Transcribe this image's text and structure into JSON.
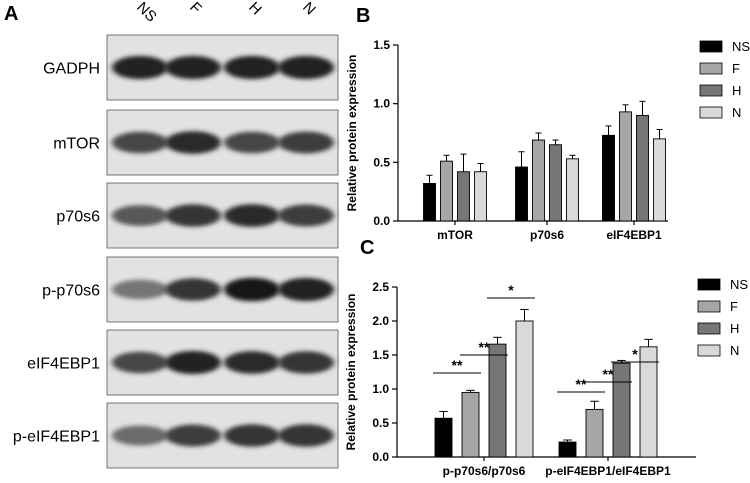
{
  "panels": {
    "a": "A",
    "b": "B",
    "c": "C"
  },
  "blot": {
    "lanes": [
      "NS",
      "F",
      "H",
      "N"
    ],
    "rows": [
      {
        "label": "GADPH",
        "intensity": [
          0.9,
          0.9,
          0.9,
          0.9
        ]
      },
      {
        "label": "mTOR",
        "intensity": [
          0.7,
          0.85,
          0.7,
          0.75
        ]
      },
      {
        "label": "p70s6",
        "intensity": [
          0.6,
          0.8,
          0.85,
          0.75
        ]
      },
      {
        "label": "p-p70s6",
        "intensity": [
          0.45,
          0.8,
          0.95,
          0.9
        ]
      },
      {
        "label": "eIF4EBP1",
        "intensity": [
          0.7,
          0.9,
          0.85,
          0.8
        ]
      },
      {
        "label": "p-eIF4EBP1",
        "intensity": [
          0.5,
          0.75,
          0.8,
          0.8
        ]
      }
    ]
  },
  "legend": [
    "NS",
    "F",
    "H",
    "N"
  ],
  "colors": {
    "NS": "#000000",
    "F": "#a6a6a6",
    "H": "#767676",
    "N": "#d9d9d9"
  },
  "chart_data": [
    {
      "type": "bar",
      "panel": "B",
      "categories": [
        "mTOR",
        "p70s6",
        "eIF4EBP1"
      ],
      "series": [
        {
          "name": "NS",
          "values": [
            0.32,
            0.46,
            0.73
          ],
          "errors": [
            0.07,
            0.13,
            0.08
          ]
        },
        {
          "name": "F",
          "values": [
            0.51,
            0.69,
            0.93
          ],
          "errors": [
            0.05,
            0.06,
            0.06
          ]
        },
        {
          "name": "H",
          "values": [
            0.42,
            0.65,
            0.9
          ],
          "errors": [
            0.15,
            0.04,
            0.12
          ]
        },
        {
          "name": "N",
          "values": [
            0.42,
            0.53,
            0.7
          ],
          "errors": [
            0.07,
            0.03,
            0.08
          ]
        }
      ],
      "ylabel": "Relative protein expression",
      "ylim": [
        0,
        1.5
      ],
      "yticks": [
        "0.0",
        "0.5",
        "1.0",
        "1.5"
      ],
      "grid": false,
      "legend_position": "right"
    },
    {
      "type": "bar",
      "panel": "C",
      "categories": [
        "p-p70s6/p70s6",
        "p-eIF4EBP1/eIF4EBP1"
      ],
      "series": [
        {
          "name": "NS",
          "values": [
            0.57,
            0.22
          ],
          "errors": [
            0.1,
            0.03
          ]
        },
        {
          "name": "F",
          "values": [
            0.95,
            0.7
          ],
          "errors": [
            0.03,
            0.12
          ]
        },
        {
          "name": "H",
          "values": [
            1.66,
            1.38
          ],
          "errors": [
            0.1,
            0.04
          ]
        },
        {
          "name": "N",
          "values": [
            2.0,
            1.62
          ],
          "errors": [
            0.17,
            0.11
          ]
        }
      ],
      "ylabel": "Relative protein expression",
      "ylim": [
        0,
        2.5
      ],
      "yticks": [
        "0.0",
        "0.5",
        "1.0",
        "1.5",
        "2.0",
        "2.5"
      ],
      "grid": false,
      "legend_position": "right",
      "significance": [
        {
          "category": 0,
          "from": "NS",
          "to": "F",
          "label": "**"
        },
        {
          "category": 0,
          "from": "F",
          "to": "H",
          "label": "**"
        },
        {
          "category": 0,
          "from": "H",
          "to": "N",
          "label": "*"
        },
        {
          "category": 1,
          "from": "NS",
          "to": "F",
          "label": "**"
        },
        {
          "category": 1,
          "from": "F",
          "to": "H",
          "label": "**"
        },
        {
          "category": 1,
          "from": "H",
          "to": "N",
          "label": "*"
        }
      ]
    }
  ]
}
